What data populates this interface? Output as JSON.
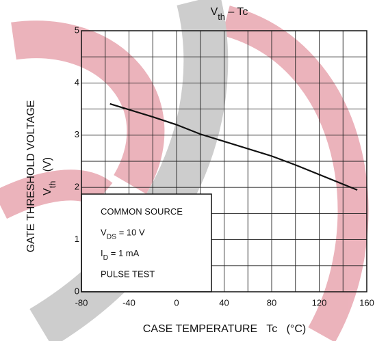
{
  "chart_data": {
    "type": "line",
    "title": [
      {
        "text": "V"
      },
      {
        "text": "th",
        "sub": true
      },
      {
        "text": " – Tc"
      }
    ],
    "x_label": "CASE TEMPERATURE   Tc   (°C)",
    "y_label": "GATE THRESHOLD VOLTAGE",
    "y_label_2": [
      {
        "text": "V"
      },
      {
        "text": "th",
        "sub": true
      },
      {
        "text": "   (V)"
      }
    ],
    "x": [
      -56,
      -20,
      0,
      20,
      40,
      80,
      100,
      152
    ],
    "values": [
      3.6,
      3.35,
      3.2,
      3.02,
      2.88,
      2.6,
      2.43,
      1.95
    ],
    "color": "#111111",
    "xlim": [
      -80,
      160
    ],
    "ylim": [
      0,
      5
    ],
    "xticks": [
      -80,
      -40,
      0,
      40,
      80,
      120,
      160
    ],
    "yticks": [
      0,
      1,
      2,
      3,
      4,
      5
    ],
    "xgrid": [
      -80,
      -60,
      -40,
      -20,
      0,
      20,
      40,
      60,
      80,
      100,
      120,
      140,
      160
    ],
    "ygrid": [
      0,
      0.5,
      1,
      1.5,
      2,
      2.5,
      3,
      3.5,
      4,
      4.5,
      5
    ],
    "annotations": [
      [
        {
          "text": "COMMON SOURCE"
        }
      ],
      [
        {
          "text": "V"
        },
        {
          "text": "DS",
          "sub": true
        },
        {
          "text": " = 10 V"
        }
      ],
      [
        {
          "text": "I"
        },
        {
          "text": "D",
          "sub": true
        },
        {
          "text": " = 1 mA"
        }
      ],
      [
        {
          "text": "PULSE TEST"
        }
      ]
    ]
  }
}
